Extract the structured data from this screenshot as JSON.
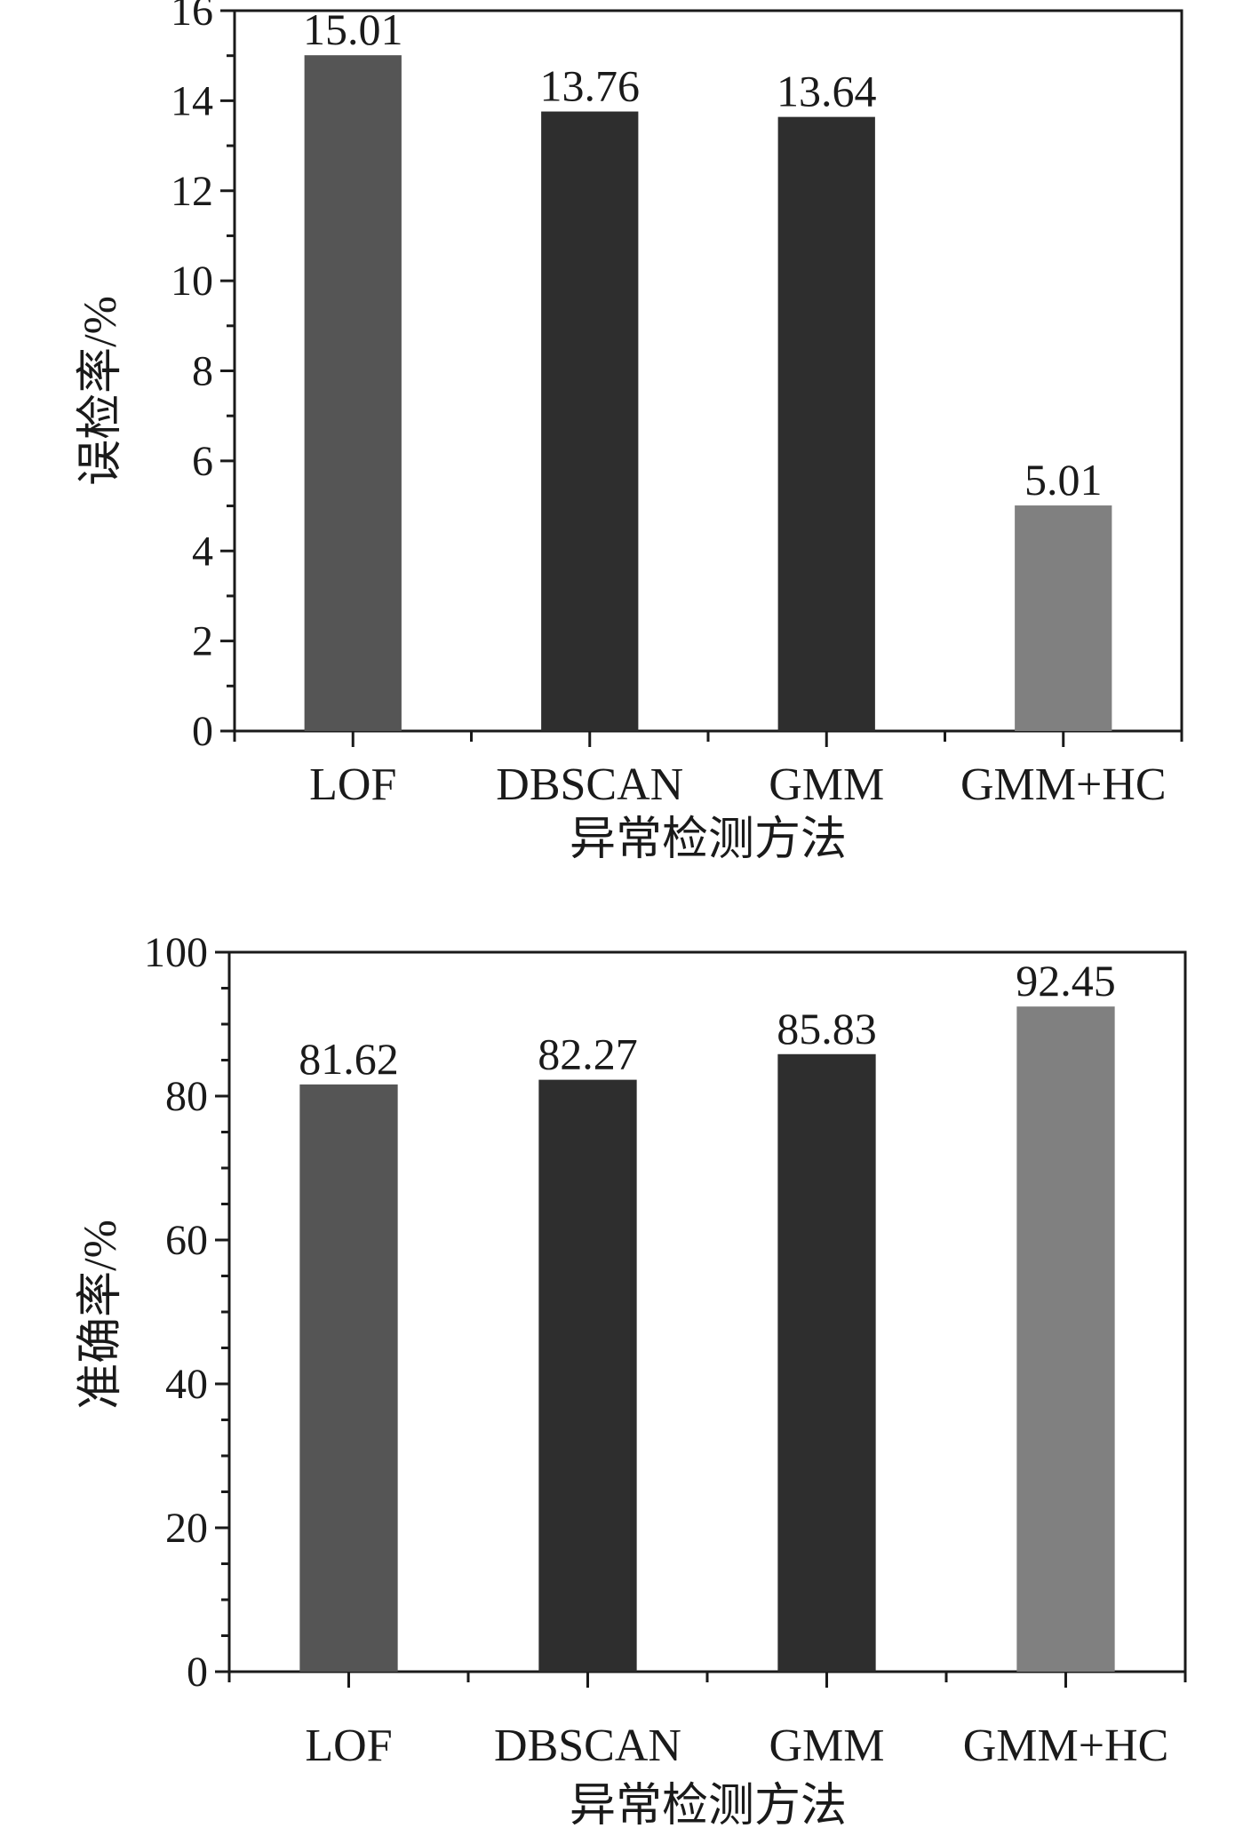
{
  "chart_data": [
    {
      "type": "bar",
      "categories": [
        "LOF",
        "DBSCAN",
        "GMM",
        "GMM+HC"
      ],
      "values": [
        15.01,
        13.76,
        13.64,
        5.01
      ],
      "value_labels": [
        "15.01",
        "13.76",
        "13.64",
        "5.01"
      ],
      "bar_colors": [
        "#555555",
        "#2e2e2e",
        "#2e2e2e",
        "#808080"
      ],
      "xlabel": "异常检测方法",
      "ylabel": "误检率/%",
      "ylim": [
        0,
        16
      ],
      "yticks": [
        0,
        2,
        4,
        6,
        8,
        10,
        12,
        14,
        16
      ],
      "ytick_labels": [
        "0",
        "2",
        "4",
        "6",
        "8",
        "10",
        "12",
        "14",
        "16"
      ],
      "grid": false,
      "legend": "none"
    },
    {
      "type": "bar",
      "categories": [
        "LOF",
        "DBSCAN",
        "GMM",
        "GMM+HC"
      ],
      "values": [
        81.62,
        82.27,
        85.83,
        92.45
      ],
      "value_labels": [
        "81.62",
        "82.27",
        "85.83",
        "92.45"
      ],
      "bar_colors": [
        "#555555",
        "#2e2e2e",
        "#2e2e2e",
        "#808080"
      ],
      "xlabel": "异常检测方法",
      "ylabel": "准确率/%",
      "ylim": [
        0,
        100
      ],
      "yticks": [
        0,
        20,
        40,
        60,
        80,
        100
      ],
      "ytick_labels": [
        "0",
        "20",
        "40",
        "60",
        "80",
        "100"
      ],
      "grid": false,
      "legend": "none"
    }
  ]
}
